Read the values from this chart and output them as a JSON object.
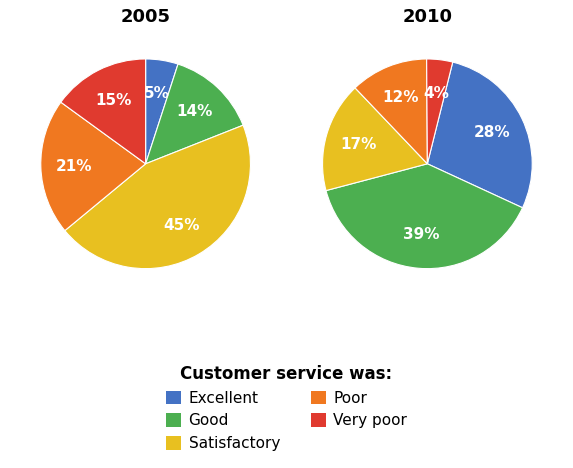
{
  "pie2005": {
    "title": "2005",
    "values": [
      5,
      14,
      45,
      21,
      15
    ],
    "colors": [
      "#4472C4",
      "#4CAF50",
      "#E8C020",
      "#F07820",
      "#E03A2F"
    ],
    "startangle": 90
  },
  "pie2010": {
    "title": "2010",
    "values": [
      28,
      39,
      17,
      12,
      4
    ],
    "colors": [
      "#4472C4",
      "#4CAF50",
      "#E8C020",
      "#F07820",
      "#E03A2F"
    ],
    "startangle": 76
  },
  "legend_title": "Customer service was:",
  "legend_col1": [
    {
      "label": "Excellent",
      "color": "#4472C4"
    },
    {
      "label": "Satisfactory",
      "color": "#E8C020"
    },
    {
      "label": "Very poor",
      "color": "#E03A2F"
    }
  ],
  "legend_col2": [
    {
      "label": "Good",
      "color": "#4CAF50"
    },
    {
      "label": "Poor",
      "color": "#F07820"
    }
  ],
  "background_color": "#FFFFFF",
  "title_fontsize": 13,
  "label_fontsize": 11,
  "legend_title_fontsize": 12,
  "legend_fontsize": 11
}
